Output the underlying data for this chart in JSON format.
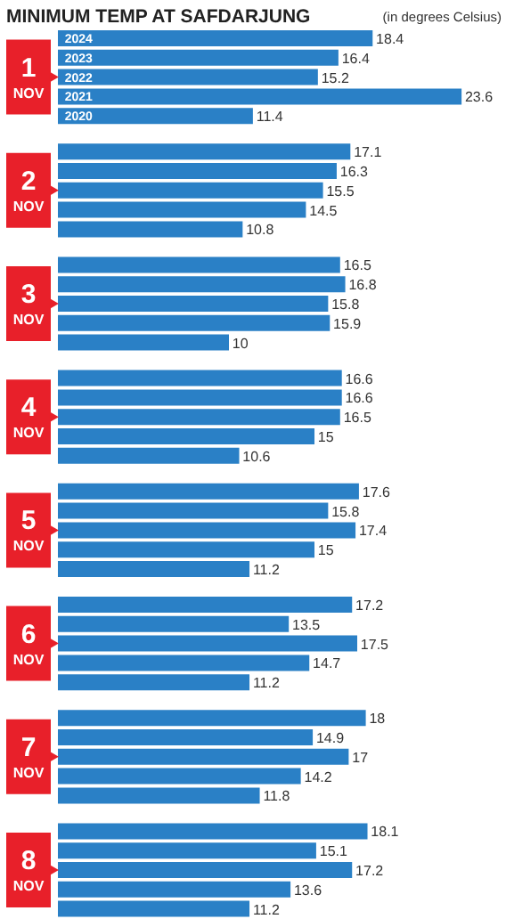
{
  "chart_data": {
    "type": "bar",
    "orientation": "horizontal",
    "title": "MINIMUM TEMP AT SAFDARJUNG",
    "subtitle": "(in degrees Celsius)",
    "categories": [
      "1 NOV",
      "2 NOV",
      "3 NOV",
      "4 NOV",
      "5 NOV",
      "6 NOV",
      "7 NOV",
      "8 NOV"
    ],
    "series": [
      {
        "name": "2024",
        "color": "#2a80c6",
        "values": [
          18.4,
          17.1,
          16.5,
          16.6,
          17.6,
          17.2,
          18,
          18.1
        ]
      },
      {
        "name": "2023",
        "color": "#2a80c6",
        "values": [
          16.4,
          16.3,
          16.8,
          16.6,
          15.8,
          13.5,
          14.9,
          15.1
        ]
      },
      {
        "name": "2022",
        "color": "#2a80c6",
        "values": [
          15.2,
          15.5,
          15.8,
          16.5,
          17.4,
          17.5,
          17,
          17.2
        ]
      },
      {
        "name": "2021",
        "color": "#2a80c6",
        "values": [
          23.6,
          14.5,
          15.9,
          15,
          15,
          14.7,
          14.2,
          13.6
        ]
      },
      {
        "name": "2020",
        "color": "#2a80c6",
        "values": [
          11.4,
          10.8,
          10,
          10.6,
          11.2,
          11.2,
          11.8,
          11.2
        ]
      }
    ],
    "data_labels": true
  }
}
